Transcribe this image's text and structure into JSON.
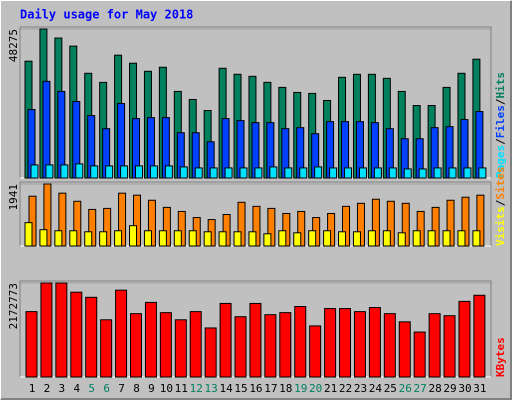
{
  "legend_separator": "/",
  "chart_data": [
    {
      "type": "bar",
      "title": "Daily usage for May 2018",
      "ylim": [
        0,
        48275
      ],
      "yticks": [
        48275
      ],
      "series": [
        {
          "name": "Hits",
          "color": "#00805c",
          "values": [
            37839,
            48275,
            45342,
            42731,
            33925,
            30989,
            39796,
            37187,
            34577,
            35882,
            28053,
            25443,
            21855,
            35556,
            33599,
            32946,
            30989,
            29358,
            27727,
            27401,
            25117,
            32620,
            33599,
            33599,
            32294,
            28053,
            23486,
            23486,
            29358,
            33925,
            38492
          ]
        },
        {
          "name": "Files",
          "color": "#0040ff",
          "values": [
            22182,
            31315,
            28053,
            24791,
            20224,
            15984,
            24139,
            19246,
            19572,
            19572,
            14679,
            14679,
            11743,
            19246,
            18593,
            17941,
            17941,
            15984,
            16310,
            14353,
            18267,
            18267,
            18267,
            17941,
            15984,
            12722,
            12722,
            16310,
            16636,
            18920,
            21529
          ]
        },
        {
          "name": "Pages",
          "color": "#00e0ff",
          "values": [
            4241,
            4241,
            4241,
            4567,
            3914,
            3914,
            3914,
            3914,
            3914,
            3914,
            3588,
            3262,
            3262,
            3262,
            3262,
            3262,
            3588,
            3262,
            3262,
            3588,
            3262,
            3262,
            3262,
            3262,
            3262,
            2936,
            2936,
            3262,
            3262,
            3262,
            3262
          ]
        }
      ]
    },
    {
      "type": "bar",
      "ylim": [
        0,
        1941
      ],
      "yticks": [
        1941
      ],
      "series": [
        {
          "name": "Sites",
          "color": "#ff8000",
          "values": [
            1559,
            1941,
            1654,
            1400,
            1145,
            1177,
            1654,
            1591,
            1432,
            1209,
            1082,
            891,
            827,
            986,
            1368,
            1241,
            1177,
            1018,
            1082,
            891,
            1018,
            1241,
            1336,
            1464,
            1400,
            1336,
            1082,
            1209,
            1432,
            1527,
            1591
          ]
        },
        {
          "name": "Visits",
          "color": "#ffff00",
          "values": [
            731,
            509,
            477,
            477,
            445,
            445,
            477,
            636,
            477,
            477,
            477,
            477,
            445,
            445,
            445,
            445,
            382,
            477,
            413,
            477,
            477,
            445,
            445,
            477,
            477,
            413,
            477,
            477,
            477,
            477,
            477
          ]
        }
      ]
    },
    {
      "type": "bar",
      "ylim": [
        0,
        2172773
      ],
      "yticks": [
        2172773
      ],
      "categories": [
        "1",
        "2",
        "3",
        "4",
        "5",
        "6",
        "7",
        "8",
        "9",
        "10",
        "11",
        "12",
        "13",
        "14",
        "15",
        "16",
        "17",
        "18",
        "19",
        "20",
        "21",
        "22",
        "23",
        "24",
        "25",
        "26",
        "27",
        "28",
        "29",
        "30",
        "31"
      ],
      "category_colors": [
        "#000000",
        "#000000",
        "#000000",
        "#000000",
        "#00805c",
        "#00805c",
        "#000000",
        "#000000",
        "#000000",
        "#000000",
        "#000000",
        "#00805c",
        "#00805c",
        "#000000",
        "#000000",
        "#000000",
        "#000000",
        "#000000",
        "#00805c",
        "#00805c",
        "#000000",
        "#000000",
        "#000000",
        "#000000",
        "#000000",
        "#00805c",
        "#00805c",
        "#000000",
        "#000000",
        "#000000",
        "#000000"
      ],
      "series": [
        {
          "name": "KBytes",
          "color": "#ff0000",
          "values": [
            1511488,
            2172773,
            2172773,
            1960211,
            1842126,
            1322552,
            2007445,
            1464254,
            1724041,
            1487871,
            1322552,
            1511488,
            1133616,
            1700424,
            1393403,
            1700424,
            1440637,
            1487871,
            1629573,
            1180850,
            1582339,
            1582339,
            1511488,
            1605956,
            1464254,
            1275318,
            1039148,
            1464254,
            1417020,
            1747658,
            1889360
          ]
        }
      ]
    }
  ]
}
